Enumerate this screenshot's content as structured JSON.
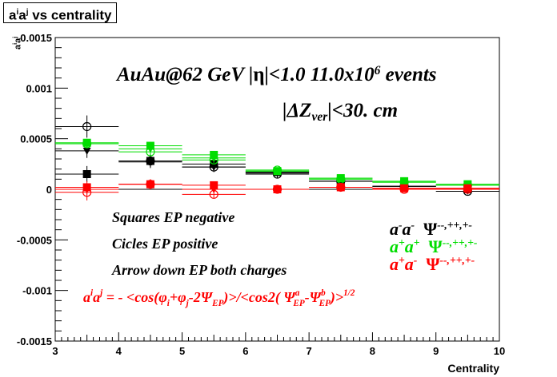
{
  "title": {
    "base": "a",
    "sup1": "i",
    "mid": "a",
    "sup2": "j",
    "rest": " vs centrality"
  },
  "annotations": {
    "line1_a": "AuAu@62 GeV |",
    "line1_eta": "η",
    "line1_b": "|<1.0 11.0x10",
    "line1_exp": "6",
    "line1_c": " events",
    "line2_a": "|ΔZ",
    "line2_sub": "ver",
    "line2_b": "|<30. cm",
    "squares": "Squares EP negative",
    "circles": "Cicles EP positive",
    "arrows": "Arrow down EP both charges",
    "formula_a": "a",
    "formula_b": "a",
    "formula_c": " = - <cos(φ",
    "formula_d": "+φ",
    "formula_e": "-2Ψ",
    "formula_f": ")>/<cos2( Ψ",
    "formula_g": "-Ψ",
    "formula_h": ")>",
    "formula_exp": "1/2",
    "sub_i": "i",
    "sub_j": "j",
    "sup_i": "i",
    "sup_j": "j",
    "sub_EP": "EP",
    "sup_a": "a",
    "sup_b": "b"
  },
  "legend": [
    {
      "pair_a": "a",
      "sign_a": "-",
      "pair_b": "a",
      "sign_b": "-",
      "psi": "Ψ",
      "psi_sup": "--,++,+-",
      "color": "#000000"
    },
    {
      "pair_a": "a",
      "sign_a": "+",
      "pair_b": "a",
      "sign_b": "+",
      "psi": "Ψ",
      "psi_sup": "--,++,+-",
      "color": "#00dd00"
    },
    {
      "pair_a": "a",
      "sign_a": "+",
      "pair_b": "a",
      "sign_b": "-",
      "psi": "Ψ",
      "psi_sup": "--,++,+-",
      "color": "#ff0000"
    }
  ],
  "chart_data": {
    "type": "scatter",
    "title": "aiaj vs centrality",
    "xlabel": "Centrality",
    "ylabel": "aiaj",
    "xlim": [
      3,
      10
    ],
    "ylim": [
      -0.0015,
      0.0015
    ],
    "x_ticks": [
      3,
      4,
      5,
      6,
      7,
      8,
      9,
      10
    ],
    "x_tick_labels": [
      "3",
      "4",
      "5",
      "6",
      "7",
      "8",
      "9",
      "10"
    ],
    "y_ticks": [
      -0.0015,
      -0.001,
      -0.0005,
      0,
      0.0005,
      0.001,
      0.0015
    ],
    "y_tick_labels": [
      "-0.0015",
      "-0.001",
      "-0.0005",
      "0",
      "0.0005",
      "0.001",
      "0.0015"
    ],
    "grid": false,
    "series": [
      {
        "color": "#000000",
        "marker": "square",
        "x": [
          3.5,
          4.5,
          5.5,
          6.5,
          7.5,
          8.5,
          9.5
        ],
        "y": [
          0.00015,
          0.00028,
          0.00025,
          0.00017,
          8e-05,
          3e-05,
          0.0
        ],
        "err": [
          8e-05,
          6e-05,
          5e-05,
          4e-05,
          3e-05,
          3e-05,
          3e-05
        ]
      },
      {
        "color": "#000000",
        "marker": "open-circle",
        "x": [
          3.5,
          4.5,
          5.5,
          6.5,
          7.5,
          8.5,
          9.5
        ],
        "y": [
          0.00062,
          0.00028,
          0.00022,
          0.00015,
          8e-05,
          3e-05,
          -2e-05
        ],
        "err": [
          0.00011,
          7e-05,
          5e-05,
          4e-05,
          3e-05,
          3e-05,
          3e-05
        ]
      },
      {
        "color": "#000000",
        "marker": "triangle-down",
        "x": [
          3.5,
          4.5,
          5.5,
          6.5,
          7.5,
          8.5,
          9.5
        ],
        "y": [
          0.00038,
          0.00027,
          0.00022,
          0.00016,
          8e-05,
          3e-05,
          0.0
        ],
        "err": [
          7e-05,
          5e-05,
          4e-05,
          3e-05,
          3e-05,
          2e-05,
          2e-05
        ]
      },
      {
        "color": "#00dd00",
        "marker": "square",
        "x": [
          3.5,
          4.5,
          5.5,
          6.5,
          7.5,
          8.5,
          9.5
        ],
        "y": [
          0.00046,
          0.00043,
          0.00034,
          0.00018,
          0.00011,
          8e-05,
          5e-05
        ],
        "err": [
          4e-05,
          4e-05,
          3e-05,
          3e-05,
          2e-05,
          2e-05,
          2e-05
        ]
      },
      {
        "color": "#00dd00",
        "marker": "open-circle",
        "x": [
          3.5,
          4.5,
          5.5,
          6.5,
          7.5,
          8.5,
          9.5
        ],
        "y": [
          0.00045,
          0.00037,
          0.00029,
          0.00019,
          0.0001,
          7e-05,
          4e-05
        ],
        "err": [
          4e-05,
          3e-05,
          3e-05,
          2e-05,
          2e-05,
          2e-05,
          2e-05
        ]
      },
      {
        "color": "#00dd00",
        "marker": "triangle-down",
        "x": [
          3.5,
          4.5,
          5.5,
          6.5,
          7.5,
          8.5,
          9.5
        ],
        "y": [
          0.00045,
          0.0004,
          0.00031,
          0.00018,
          0.00011,
          7e-05,
          4e-05
        ],
        "err": [
          4e-05,
          3e-05,
          3e-05,
          2e-05,
          2e-05,
          2e-05,
          2e-05
        ]
      },
      {
        "color": "#ff0000",
        "marker": "square",
        "x": [
          3.5,
          4.5,
          5.5,
          6.5,
          7.5,
          8.5,
          9.5
        ],
        "y": [
          2e-05,
          5e-05,
          4e-05,
          0.0,
          2e-05,
          1e-05,
          1e-05
        ],
        "err": [
          6e-05,
          4e-05,
          3e-05,
          2e-05,
          2e-05,
          2e-05,
          2e-05
        ]
      },
      {
        "color": "#ff0000",
        "marker": "open-circle",
        "x": [
          3.5,
          4.5,
          5.5,
          6.5,
          7.5,
          8.5,
          9.5
        ],
        "y": [
          -3e-05,
          5e-05,
          -5e-05,
          0.0,
          2e-05,
          0.0,
          0.0
        ],
        "err": [
          8e-05,
          5e-05,
          4e-05,
          3e-05,
          2e-05,
          2e-05,
          2e-05
        ]
      },
      {
        "color": "#ff0000",
        "marker": "triangle-down",
        "x": [
          3.5,
          4.5,
          5.5,
          6.5,
          7.5,
          8.5,
          9.5
        ],
        "y": [
          0.0,
          5e-05,
          0.0,
          0.0,
          2e-05,
          1e-05,
          1e-05
        ],
        "err": [
          5e-05,
          3e-05,
          3e-05,
          2e-05,
          2e-05,
          2e-05,
          2e-05
        ]
      }
    ]
  }
}
